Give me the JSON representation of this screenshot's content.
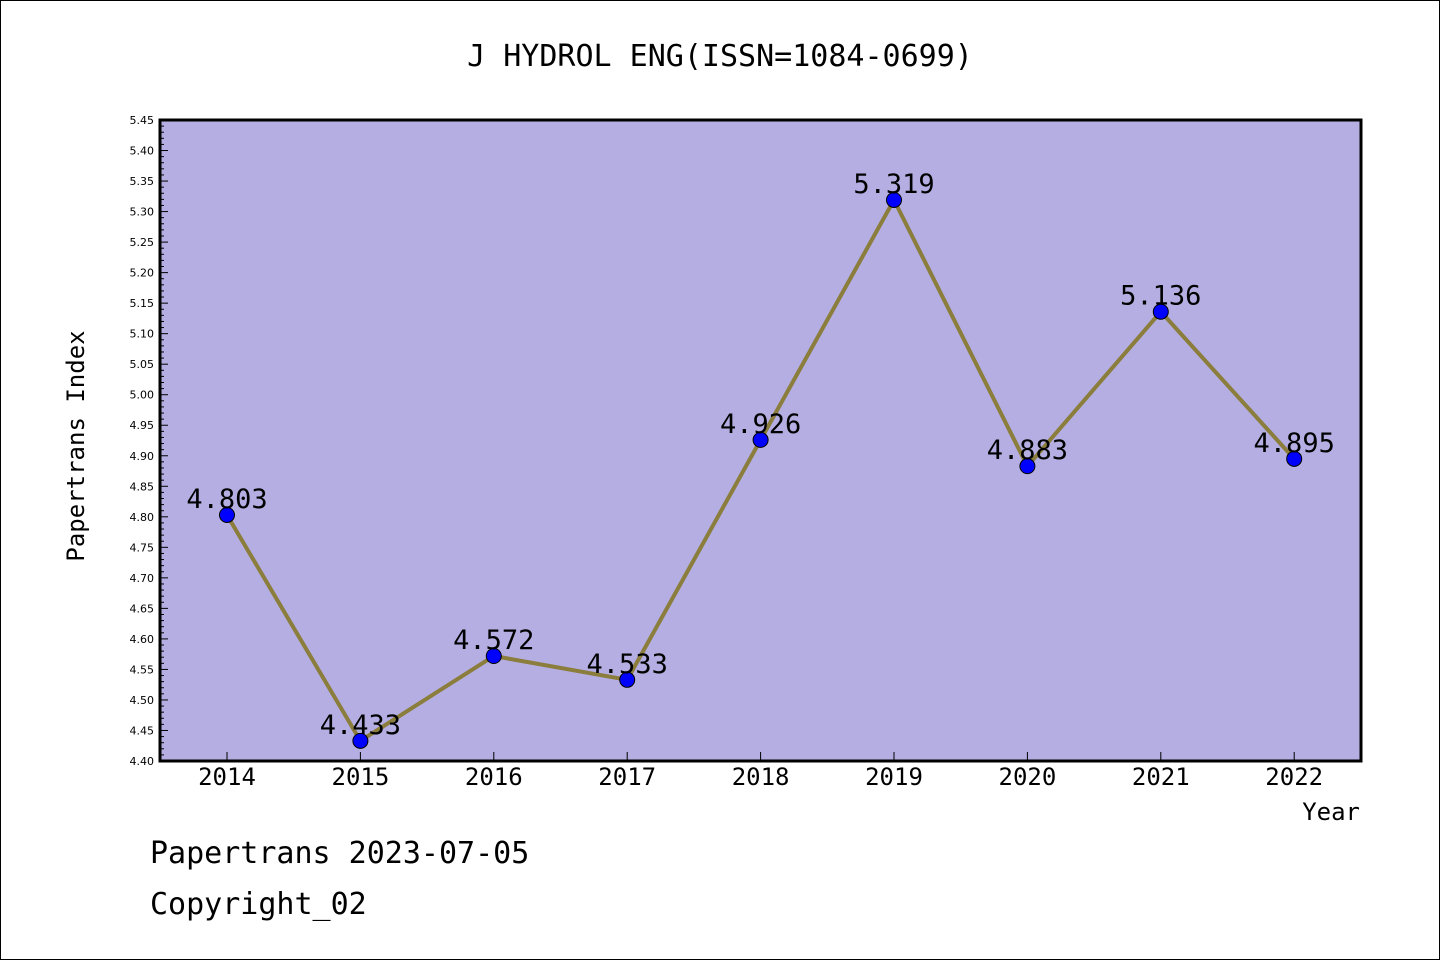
{
  "chart_data": {
    "type": "line",
    "title": "J HYDROL ENG(ISSN=1084-0699)",
    "xlabel": "Year",
    "ylabel": "Papertrans Index",
    "categories": [
      "2014",
      "2015",
      "2016",
      "2017",
      "2018",
      "2019",
      "2020",
      "2021",
      "2022"
    ],
    "values": [
      4.803,
      4.433,
      4.572,
      4.533,
      4.926,
      5.319,
      4.883,
      5.136,
      4.895
    ],
    "data_labels": [
      "4.803",
      "4.433",
      "4.572",
      "4.533",
      "4.926",
      "5.319",
      "4.883",
      "5.136",
      "4.895"
    ],
    "ylim": [
      4.4,
      5.45
    ],
    "yticks": [
      "4.40",
      "4.45",
      "4.50",
      "4.55",
      "4.60",
      "4.65",
      "4.70",
      "4.75",
      "4.80",
      "4.85",
      "4.90",
      "4.95",
      "5.00",
      "5.05",
      "5.10",
      "5.15",
      "5.20",
      "5.25",
      "5.30",
      "5.35",
      "5.40",
      "5.45"
    ],
    "grid": false,
    "colors": {
      "plot_background": "#b4aee2",
      "line": "#8b7d3c",
      "marker": "#0000ff"
    }
  },
  "footer": {
    "date_line": "Papertrans 2023-07-05",
    "copyright_line": "Copyright_02"
  }
}
